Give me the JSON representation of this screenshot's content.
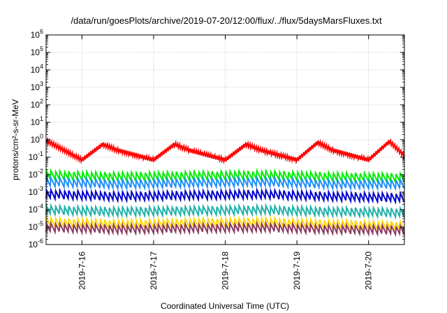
{
  "chart_data": {
    "type": "line",
    "title": "/data/run/goesPlots/archive/2019-07-20/12:00/flux/../flux/5daysMarsFluxes.txt",
    "xlabel": "Coordinated Universal Time (UTC)",
    "ylabel": "protons/cm²-s-sr-MeV",
    "yscale": "log",
    "ylim": [
      1e-06,
      1000000.0
    ],
    "y_ticks": [
      {
        "base": "10",
        "exp": "-6"
      },
      {
        "base": "10",
        "exp": "-5"
      },
      {
        "base": "10",
        "exp": "-4"
      },
      {
        "base": "10",
        "exp": "-3"
      },
      {
        "base": "10",
        "exp": "-2"
      },
      {
        "base": "10",
        "exp": "-1"
      },
      {
        "base": "10",
        "exp": "0"
      },
      {
        "base": "10",
        "exp": "1"
      },
      {
        "base": "10",
        "exp": "2"
      },
      {
        "base": "10",
        "exp": "3"
      },
      {
        "base": "10",
        "exp": "4"
      },
      {
        "base": "10",
        "exp": "5"
      },
      {
        "base": "10",
        "exp": "6"
      }
    ],
    "xlim": [
      "2019-07-15 12:00",
      "2019-07-20 12:00"
    ],
    "x_ticks": [
      "2019-7-16",
      "2019-7-17",
      "2019-7-18",
      "2019-7-19",
      "2019-7-20"
    ],
    "grid": true,
    "series": [
      {
        "color": "#ff0000",
        "x": [
          "2019-07-15 12:00",
          "2019-07-16 00:00",
          "2019-07-16 07:00",
          "2019-07-16 12:00",
          "2019-07-17 00:00",
          "2019-07-17 07:00",
          "2019-07-17 12:00",
          "2019-07-18 00:00",
          "2019-07-18 07:00",
          "2019-07-18 12:00",
          "2019-07-19 00:00",
          "2019-07-19 07:00",
          "2019-07-19 12:00",
          "2019-07-20 00:00",
          "2019-07-20 07:00",
          "2019-07-20 12:00"
        ],
        "values": [
          0.9,
          0.07,
          0.55,
          0.25,
          0.07,
          0.55,
          0.25,
          0.07,
          0.55,
          0.25,
          0.07,
          0.7,
          0.25,
          0.07,
          0.8,
          0.12
        ]
      },
      {
        "color": "#00ee00",
        "x": [
          "2019-07-15 12:00",
          "2019-07-16 12:00",
          "2019-07-17 12:00",
          "2019-07-18 12:00",
          "2019-07-19 12:00",
          "2019-07-20 12:00"
        ],
        "values": [
          0.01,
          0.008,
          0.009,
          0.01,
          0.008,
          0.007
        ]
      },
      {
        "color": "#1e90ff",
        "x": [
          "2019-07-15 12:00",
          "2019-07-16 12:00",
          "2019-07-17 12:00",
          "2019-07-18 12:00",
          "2019-07-19 12:00",
          "2019-07-20 12:00"
        ],
        "values": [
          0.004,
          0.003,
          0.0035,
          0.004,
          0.003,
          0.003
        ]
      },
      {
        "color": "#0000cd",
        "x": [
          "2019-07-15 12:00",
          "2019-07-16 12:00",
          "2019-07-17 12:00",
          "2019-07-18 12:00",
          "2019-07-19 12:00",
          "2019-07-20 12:00"
        ],
        "values": [
          0.0008,
          0.0006,
          0.0007,
          0.0008,
          0.0006,
          0.0005
        ]
      },
      {
        "color": "#20b2aa",
        "x": [
          "2019-07-15 12:00",
          "2019-07-16 12:00",
          "2019-07-17 12:00",
          "2019-07-18 12:00",
          "2019-07-19 12:00",
          "2019-07-20 12:00"
        ],
        "values": [
          0.0001,
          8e-05,
          9e-05,
          0.0001,
          8e-05,
          7e-05
        ]
      },
      {
        "color": "#ffd700",
        "x": [
          "2019-07-15 12:00",
          "2019-07-16 12:00",
          "2019-07-17 12:00",
          "2019-07-18 12:00",
          "2019-07-19 12:00",
          "2019-07-20 12:00"
        ],
        "values": [
          2e-05,
          1.5e-05,
          1.8e-05,
          2e-05,
          1.5e-05,
          1.2e-05
        ]
      },
      {
        "color": "#8b3a62",
        "x": [
          "2019-07-15 12:00",
          "2019-07-16 12:00",
          "2019-07-17 12:00",
          "2019-07-18 12:00",
          "2019-07-19 12:00",
          "2019-07-20 12:00"
        ],
        "values": [
          1e-05,
          8e-06,
          9e-06,
          1e-05,
          8e-06,
          7e-06
        ]
      }
    ]
  }
}
